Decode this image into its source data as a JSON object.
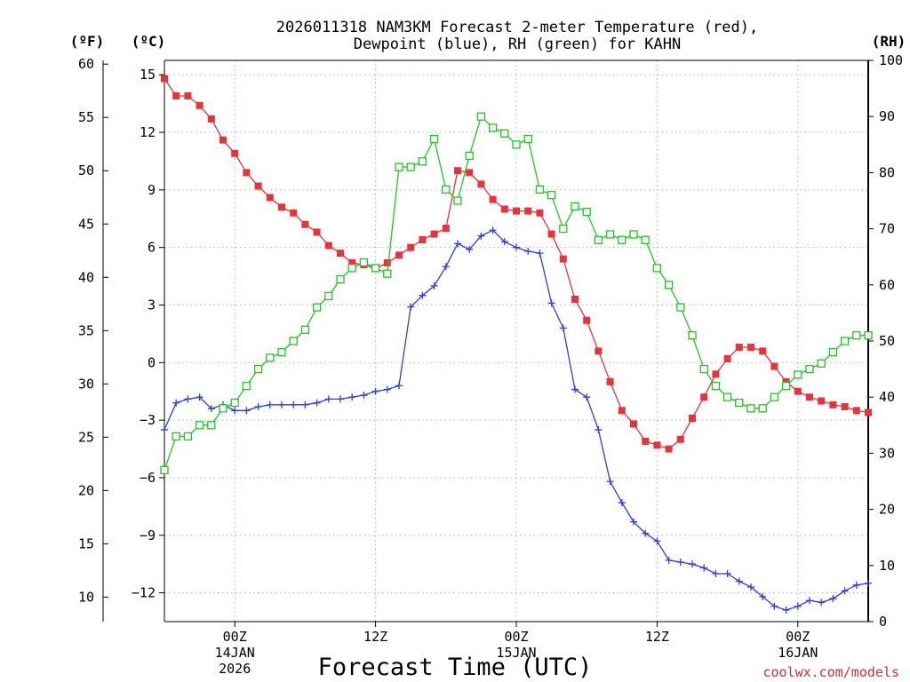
{
  "chart_data": {
    "type": "line",
    "title_line1": "2026011318 NAM3KM Forecast 2-meter Temperature (red),",
    "title_line2": "Dewpoint (blue), RH (green) for KAHN",
    "xlabel": "Forecast Time (UTC)",
    "credit": "coolwx.com/models",
    "units": {
      "fahrenheit": "(ºF)",
      "celsius": "(ºC)",
      "rh": "(RH)"
    },
    "colors": {
      "temperature": "#e8333a",
      "dewpoint": "#2b3ee8",
      "rh": "#1ec81e",
      "credit": "#cc3333",
      "grid": "#b0b0b0"
    },
    "x_range_hours": [
      0,
      60
    ],
    "celsius_axis": {
      "range": [
        -13.5,
        15.75
      ],
      "ticks": [
        15,
        12,
        9,
        6,
        3,
        0,
        -3,
        -6,
        -9,
        -12
      ],
      "tick_labels": [
        "15",
        "12",
        "9",
        "6",
        "3",
        "0",
        "−3",
        "−6",
        "−9",
        "−12"
      ]
    },
    "fahrenheit_axis": {
      "ticks": [
        60,
        55,
        50,
        45,
        40,
        35,
        30,
        25,
        20,
        15,
        10
      ],
      "tick_labels": [
        "60",
        "55",
        "50",
        "45",
        "40",
        "35",
        "30",
        "25",
        "20",
        "15",
        "10"
      ]
    },
    "rh_axis": {
      "range": [
        0,
        100
      ],
      "ticks": [
        0,
        10,
        20,
        30,
        40,
        50,
        60,
        70,
        80,
        90,
        100
      ],
      "tick_labels": [
        "0",
        "10",
        "20",
        "30",
        "40",
        "50",
        "60",
        "70",
        "80",
        "90",
        "100"
      ]
    },
    "x_ticks": [
      {
        "hour": 6,
        "lines": [
          "00Z",
          "14JAN",
          "2026"
        ]
      },
      {
        "hour": 18,
        "lines": [
          "12Z"
        ]
      },
      {
        "hour": 30,
        "lines": [
          "00Z",
          "15JAN"
        ]
      },
      {
        "hour": 42,
        "lines": [
          "12Z"
        ]
      },
      {
        "hour": 54,
        "lines": [
          "00Z",
          "16JAN"
        ]
      }
    ],
    "series": [
      {
        "name": "Temperature",
        "unit": "C",
        "marker": "filled-square",
        "color": "#e8333a",
        "x": [
          0,
          1,
          2,
          3,
          4,
          5,
          6,
          7,
          8,
          9,
          10,
          11,
          12,
          13,
          14,
          15,
          16,
          17,
          18,
          19,
          20,
          21,
          22,
          23,
          24,
          25,
          26,
          27,
          28,
          29,
          30,
          31,
          32,
          33,
          34,
          35,
          36,
          37,
          38,
          39,
          40,
          41,
          42,
          43,
          44,
          45,
          46,
          47,
          48,
          49,
          50,
          51,
          52,
          53,
          54,
          55,
          56,
          57,
          58,
          59,
          60
        ],
        "values": [
          14.8,
          13.9,
          13.9,
          13.4,
          12.7,
          11.6,
          10.9,
          9.9,
          9.2,
          8.6,
          8.1,
          7.8,
          7.2,
          6.8,
          6.1,
          5.7,
          5.2,
          5.1,
          4.9,
          5.2,
          5.6,
          6.0,
          6.4,
          6.7,
          7.0,
          10.0,
          9.9,
          9.3,
          8.5,
          8.0,
          7.9,
          7.9,
          7.8,
          6.7,
          5.4,
          3.3,
          2.2,
          0.6,
          -1.0,
          -2.5,
          -3.2,
          -4.1,
          -4.3,
          -4.5,
          -4.0,
          -2.9,
          -1.8,
          -0.6,
          0.2,
          0.8,
          0.8,
          0.6,
          -0.2,
          -1.0,
          -1.5,
          -1.8,
          -2.0,
          -2.2,
          -2.3,
          -2.5,
          -2.6
        ]
      },
      {
        "name": "Dewpoint",
        "unit": "C",
        "marker": "plus",
        "color": "#2b3ee8",
        "x": [
          0,
          1,
          2,
          3,
          4,
          5,
          6,
          7,
          8,
          9,
          10,
          11,
          12,
          13,
          14,
          15,
          16,
          17,
          18,
          19,
          20,
          21,
          22,
          23,
          24,
          25,
          26,
          27,
          28,
          29,
          30,
          31,
          32,
          33,
          34,
          35,
          36,
          37,
          38,
          39,
          40,
          41,
          42,
          43,
          44,
          45,
          46,
          47,
          48,
          49,
          50,
          51,
          52,
          53,
          54,
          55,
          56,
          57,
          58,
          59,
          60
        ],
        "values": [
          -3.5,
          -2.1,
          -1.9,
          -1.8,
          -2.4,
          -2.2,
          -2.5,
          -2.5,
          -2.3,
          -2.2,
          -2.2,
          -2.2,
          -2.2,
          -2.1,
          -1.9,
          -1.9,
          -1.8,
          -1.7,
          -1.5,
          -1.4,
          -1.2,
          2.9,
          3.5,
          4.0,
          5.0,
          6.2,
          5.9,
          6.6,
          6.9,
          6.3,
          6.0,
          5.8,
          5.7,
          3.1,
          1.8,
          -1.4,
          -1.8,
          -3.5,
          -6.2,
          -7.3,
          -8.3,
          -8.9,
          -9.3,
          -10.3,
          -10.4,
          -10.5,
          -10.7,
          -11.0,
          -11.0,
          -11.4,
          -11.7,
          -12.2,
          -12.7,
          -12.9,
          -12.7,
          -12.4,
          -12.5,
          -12.3,
          -11.9,
          -11.6,
          -11.5
        ]
      },
      {
        "name": "RH",
        "unit": "%",
        "marker": "open-square",
        "color": "#1ec81e",
        "x": [
          0,
          1,
          2,
          3,
          4,
          5,
          6,
          7,
          8,
          9,
          10,
          11,
          12,
          13,
          14,
          15,
          16,
          17,
          18,
          19,
          20,
          21,
          22,
          23,
          24,
          25,
          26,
          27,
          28,
          29,
          30,
          31,
          32,
          33,
          34,
          35,
          36,
          37,
          38,
          39,
          40,
          41,
          42,
          43,
          44,
          45,
          46,
          47,
          48,
          49,
          50,
          51,
          52,
          53,
          54,
          55,
          56,
          57,
          58,
          59,
          60
        ],
        "values": [
          27,
          33,
          33,
          35,
          35,
          38,
          39,
          42,
          45,
          47,
          48,
          50,
          52,
          56,
          58,
          61,
          63,
          64,
          63,
          62,
          81,
          81,
          82,
          86,
          77,
          75,
          83,
          90,
          88,
          87,
          85,
          86,
          77,
          76,
          70,
          74,
          73,
          68,
          69,
          68,
          69,
          68,
          63,
          60,
          56,
          51,
          45,
          42,
          40,
          39,
          38,
          38,
          40,
          42,
          44,
          45,
          46,
          48,
          50,
          51,
          51
        ]
      }
    ]
  }
}
